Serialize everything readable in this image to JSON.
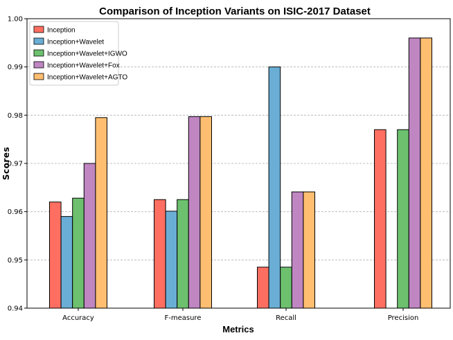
{
  "chart_data": {
    "type": "bar",
    "title": "Comparison of Inception Variants on ISIC-2017 Dataset",
    "xlabel": "Metrics",
    "ylabel": "Scores",
    "categories": [
      "Accuracy",
      "F-measure",
      "Recall",
      "Precision"
    ],
    "ylim": [
      0.94,
      1.0
    ],
    "yticks": [
      "0.94",
      "0.95",
      "0.96",
      "0.97",
      "0.98",
      "0.99",
      "1.00"
    ],
    "grid": "y-dashed",
    "legend_position": "top-left",
    "series": [
      {
        "name": "Inception",
        "color": "#ff6f61",
        "values": [
          0.962,
          0.9625,
          0.9485,
          0.977
        ]
      },
      {
        "name": "Inception+Wavelet",
        "color": "#6aaed6",
        "values": [
          0.959,
          0.9601,
          0.99,
          0.94
        ]
      },
      {
        "name": "Inception+Wavelet+IGWO",
        "color": "#6cc06e",
        "values": [
          0.9628,
          0.9625,
          0.9485,
          0.977
        ]
      },
      {
        "name": "Inception+Wavelet+Fox",
        "color": "#bf86c2",
        "values": [
          0.97,
          0.9797,
          0.9641,
          0.996
        ]
      },
      {
        "name": "Inception+Wavelet+AGTO",
        "color": "#ffbe70",
        "values": [
          0.9795,
          0.9797,
          0.9641,
          0.996
        ]
      }
    ]
  }
}
